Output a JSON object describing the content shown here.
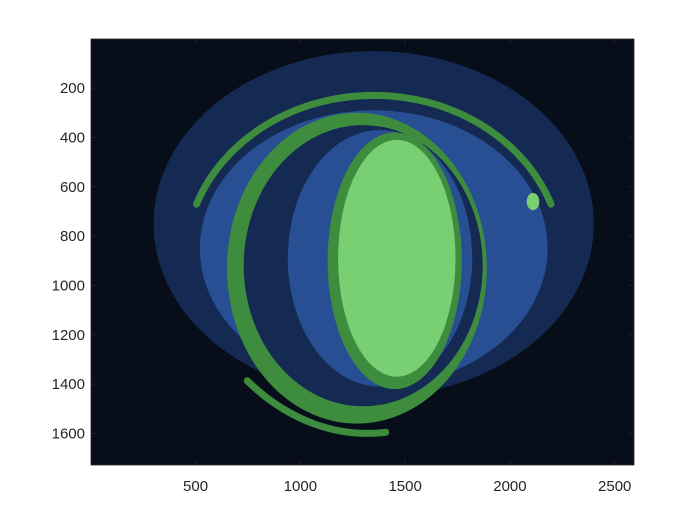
{
  "chart_data": {
    "type": "heatmap",
    "title": "",
    "xlabel": "",
    "ylabel": "",
    "xlim": [
      1,
      2592
    ],
    "ylim": [
      1,
      1728
    ],
    "y_reversed": true,
    "grid": false,
    "legend": "none",
    "x_ticks": [
      500,
      1000,
      1500,
      2000,
      2500
    ],
    "x_tick_labels": [
      "500",
      "1000",
      "1500",
      "2000",
      "2500"
    ],
    "y_ticks": [
      200,
      400,
      600,
      800,
      1000,
      1200,
      1400,
      1600
    ],
    "y_tick_labels": [
      "200",
      "400",
      "600",
      "800",
      "1000",
      "1200",
      "1400",
      "1600"
    ],
    "levels": [
      {
        "level": 1,
        "color": "#070e1a"
      },
      {
        "level": 2,
        "color": "#142a52"
      },
      {
        "level": 3,
        "color": "#284f94"
      },
      {
        "level": 4,
        "color": "#3e8c3e"
      },
      {
        "level": 5,
        "color": "#79d072"
      }
    ],
    "regions": [
      {
        "name": "outer-haze",
        "level": 2,
        "cx": 1350,
        "cy": 750,
        "rx": 1050,
        "ry": 700
      },
      {
        "name": "eye-surround",
        "level": 3,
        "cx": 1350,
        "cy": 850,
        "rx": 830,
        "ry": 560
      },
      {
        "name": "upper-lid-arc",
        "level": 4,
        "cx": 1350,
        "cy": 900,
        "rx": 900,
        "ry": 670,
        "from_deg": 200,
        "to_deg": 340
      },
      {
        "name": "outer-ring",
        "level": 4,
        "cx": 1270,
        "cy": 930,
        "rx": 620,
        "ry": 630
      },
      {
        "name": "sclera-dark",
        "level": 2,
        "cx": 1300,
        "cy": 920,
        "rx": 570,
        "ry": 570
      },
      {
        "name": "inner-ring",
        "level": 3,
        "cx": 1380,
        "cy": 890,
        "rx": 440,
        "ry": 520
      },
      {
        "name": "iris-rim",
        "level": 4,
        "cx": 1450,
        "cy": 900,
        "rx": 320,
        "ry": 520
      },
      {
        "name": "iris",
        "level": 5,
        "cx": 1460,
        "cy": 890,
        "rx": 280,
        "ry": 480
      },
      {
        "name": "lower-lid-arc",
        "level": 4,
        "cx": 1320,
        "cy": 420,
        "rx": 1000,
        "ry": 1180,
        "from_deg": 85,
        "to_deg": 125
      },
      {
        "name": "reflection-spot",
        "level": 5,
        "cx": 2110,
        "cy": 660,
        "rx": 30,
        "ry": 35
      }
    ]
  }
}
